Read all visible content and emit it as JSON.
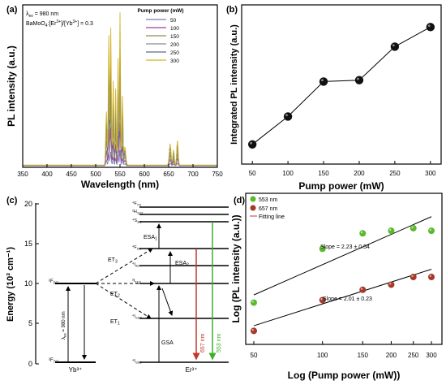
{
  "chart_data": [
    {
      "panel": "(a)",
      "type": "line",
      "xlabel": "Wavelength (nm)",
      "ylabel": "PL intensity (a.u.)",
      "xlim": [
        350,
        750
      ],
      "x_ticks": [
        "350",
        "400",
        "450",
        "500",
        "550",
        "600",
        "650",
        "700",
        "750"
      ],
      "legend_title": "Pump power (mW)",
      "annotation_lines": [
        "λex = 980 nm",
        "BaMoO4:[Er3+]/[Yb3+] = 0.3"
      ],
      "series": [
        {
          "name": "50",
          "color": "#7a7ab0",
          "scale": 0.1
        },
        {
          "name": "100",
          "color": "#a03f9c",
          "scale": 0.28
        },
        {
          "name": "150",
          "color": "#8f8c52",
          "scale": 0.46
        },
        {
          "name": "200",
          "color": "#7f8f9b",
          "scale": 0.62
        },
        {
          "name": "250",
          "color": "#5d6d7f",
          "scale": 0.8
        },
        {
          "name": "300",
          "color": "#d2b327",
          "scale": 1.0
        }
      ]
    },
    {
      "panel": "(b)",
      "type": "line",
      "xlabel": "Pump power (mW)",
      "ylabel": "Integrated PL intensity (a.u.)",
      "x": [
        50,
        100,
        150,
        200,
        250,
        300
      ],
      "y": [
        0.1,
        0.3,
        0.55,
        0.56,
        0.8,
        0.94
      ],
      "xlim": [
        35,
        315
      ],
      "x_ticks": [
        "50",
        "100",
        "150",
        "200",
        "250",
        "300"
      ]
    },
    {
      "panel": "(d)",
      "type": "scatter",
      "xlabel": "Log (Pump power (mW))",
      "ylabel": "Log (PL intensity (a.u.))",
      "x_ticks": [
        "50",
        "100",
        "150",
        "200",
        "250",
        "300"
      ],
      "x": [
        50,
        100,
        150,
        200,
        250,
        300
      ],
      "series": [
        {
          "name": "553 nm",
          "color": "#5cb82e",
          "y": [
            0.3,
            0.72,
            0.84,
            0.86,
            0.88,
            0.86
          ]
        },
        {
          "name": "657 nm",
          "color": "#a33a2a",
          "y": [
            0.08,
            0.32,
            0.4,
            0.44,
            0.5,
            0.5
          ]
        }
      ],
      "fit_label": "Fitting line",
      "slope_553": "Slope = 2.23 ± 0.54",
      "slope_657": "Slope = 2.01 ± 0.23"
    }
  ],
  "panel_c": {
    "label": "(c)",
    "ylabel": "Energy (10³ cm⁻¹)",
    "y_ticks": [
      "0",
      "5",
      "10",
      "15",
      "20"
    ],
    "yb_label": "Yb³⁺",
    "er_label": "Er³⁺",
    "yb_levels": [
      "²F5/2",
      "²F7/2"
    ],
    "er_levels": [
      "⁴F7/2",
      "²H11/2",
      "⁴S3/2",
      "⁴F9/2",
      "⁴I9/2",
      "²I11/2",
      "⁴I13/2",
      "⁴I15/2"
    ],
    "arrows": [
      "ESA1",
      "ESA2",
      "ET3",
      "ET2",
      "ET1",
      "GSA",
      "λex = 980 nm",
      "657 nm",
      "553 nm"
    ]
  }
}
